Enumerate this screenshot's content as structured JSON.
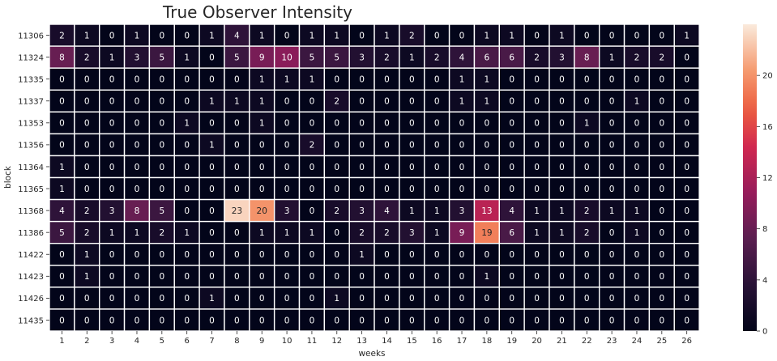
{
  "chart_data": {
    "type": "heatmap",
    "title": "True Observer Intensity",
    "xlabel": "weeks",
    "ylabel": "block",
    "x": [
      "1",
      "2",
      "3",
      "4",
      "5",
      "6",
      "7",
      "8",
      "9",
      "10",
      "11",
      "12",
      "13",
      "14",
      "15",
      "16",
      "17",
      "18",
      "19",
      "20",
      "21",
      "22",
      "23",
      "24",
      "25",
      "26"
    ],
    "y": [
      "11306",
      "11324",
      "11335",
      "11337",
      "11353",
      "11356",
      "11364",
      "11365",
      "11368",
      "11386",
      "11422",
      "11423",
      "11426",
      "11435"
    ],
    "values": [
      [
        2,
        1,
        0,
        1,
        0,
        0,
        1,
        4,
        1,
        0,
        1,
        1,
        0,
        1,
        2,
        0,
        0,
        1,
        1,
        0,
        1,
        0,
        0,
        0,
        0,
        1
      ],
      [
        8,
        2,
        1,
        3,
        5,
        1,
        0,
        5,
        9,
        10,
        5,
        5,
        3,
        2,
        1,
        2,
        4,
        6,
        6,
        2,
        3,
        8,
        1,
        2,
        2,
        0
      ],
      [
        0,
        0,
        0,
        0,
        0,
        0,
        0,
        0,
        1,
        1,
        1,
        0,
        0,
        0,
        0,
        0,
        1,
        1,
        0,
        0,
        0,
        0,
        0,
        0,
        0,
        0
      ],
      [
        0,
        0,
        0,
        0,
        0,
        0,
        1,
        1,
        1,
        0,
        0,
        2,
        0,
        0,
        0,
        0,
        1,
        1,
        0,
        0,
        0,
        0,
        0,
        1,
        0,
        0
      ],
      [
        0,
        0,
        0,
        0,
        0,
        1,
        0,
        0,
        1,
        0,
        0,
        0,
        0,
        0,
        0,
        0,
        0,
        0,
        0,
        0,
        0,
        1,
        0,
        0,
        0,
        0
      ],
      [
        0,
        0,
        0,
        0,
        0,
        0,
        1,
        0,
        0,
        0,
        2,
        0,
        0,
        0,
        0,
        0,
        0,
        0,
        0,
        0,
        0,
        0,
        0,
        0,
        0,
        0
      ],
      [
        1,
        0,
        0,
        0,
        0,
        0,
        0,
        0,
        0,
        0,
        0,
        0,
        0,
        0,
        0,
        0,
        0,
        0,
        0,
        0,
        0,
        0,
        0,
        0,
        0,
        0
      ],
      [
        1,
        0,
        0,
        0,
        0,
        0,
        0,
        0,
        0,
        0,
        0,
        0,
        0,
        0,
        0,
        0,
        0,
        0,
        0,
        0,
        0,
        0,
        0,
        0,
        0,
        0
      ],
      [
        4,
        2,
        3,
        8,
        5,
        0,
        0,
        23,
        20,
        3,
        0,
        2,
        3,
        4,
        1,
        1,
        3,
        13,
        4,
        1,
        1,
        2,
        1,
        1,
        0,
        0
      ],
      [
        5,
        2,
        1,
        1,
        2,
        1,
        0,
        0,
        1,
        1,
        1,
        0,
        2,
        2,
        3,
        1,
        9,
        19,
        6,
        1,
        1,
        2,
        0,
        1,
        0,
        0
      ],
      [
        0,
        1,
        0,
        0,
        0,
        0,
        0,
        0,
        0,
        0,
        0,
        0,
        1,
        0,
        0,
        0,
        0,
        0,
        0,
        0,
        0,
        0,
        0,
        0,
        0,
        0
      ],
      [
        0,
        1,
        0,
        0,
        0,
        0,
        0,
        0,
        0,
        0,
        0,
        0,
        0,
        0,
        0,
        0,
        0,
        1,
        0,
        0,
        0,
        0,
        0,
        0,
        0,
        0
      ],
      [
        0,
        0,
        0,
        0,
        0,
        0,
        1,
        0,
        0,
        0,
        0,
        1,
        0,
        0,
        0,
        0,
        0,
        0,
        0,
        0,
        0,
        0,
        0,
        0,
        0,
        0
      ],
      [
        0,
        0,
        0,
        0,
        0,
        0,
        0,
        0,
        0,
        0,
        0,
        0,
        0,
        0,
        0,
        0,
        0,
        0,
        0,
        0,
        0,
        0,
        0,
        0,
        0,
        0
      ]
    ],
    "vmin": 0,
    "vmax": 24,
    "colorbar_ticks": [
      "0",
      "4",
      "8",
      "12",
      "16",
      "20"
    ],
    "colormap": "rocket",
    "annotated": true,
    "gridlines": false
  },
  "colors": {
    "cell_border": "#ffffff",
    "dark_text": "#262626",
    "light_text": "#ffffff",
    "axis_text": "#262626"
  }
}
